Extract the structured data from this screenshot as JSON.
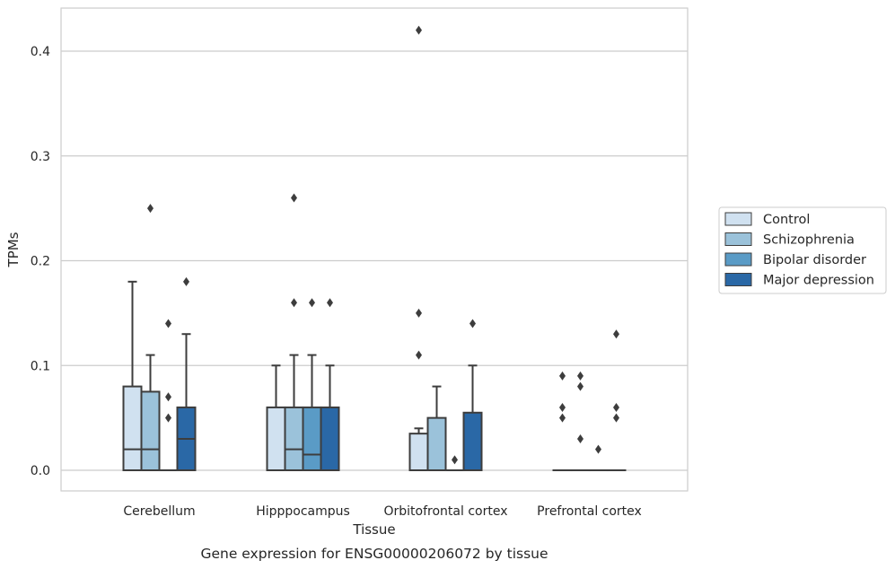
{
  "chart_data": {
    "type": "box",
    "xlabel": "Tissue",
    "ylabel": "TPMs",
    "caption": "Gene expression for ENSG00000206072 by tissue",
    "ylim": [
      -0.02,
      0.44
    ],
    "yticks": [
      "0.0",
      "0.1",
      "0.2",
      "0.3",
      "0.4"
    ],
    "ytick_values": [
      0.0,
      0.1,
      0.2,
      0.3,
      0.4
    ],
    "grid": "horizontal",
    "legend_placement": "right",
    "categories": [
      "Cerebellum",
      "Hipppocampus",
      "Orbitofrontal cortex",
      "Prefrontal cortex"
    ],
    "series": [
      {
        "name": "Control",
        "color": "#d0e1f0",
        "boxes": [
          {
            "q1": 0.0,
            "median": 0.02,
            "q3": 0.08,
            "whisker_low": 0.0,
            "whisker_high": 0.18,
            "outliers": []
          },
          {
            "q1": 0.0,
            "median": 0.0,
            "q3": 0.06,
            "whisker_low": 0.0,
            "whisker_high": 0.1,
            "outliers": []
          },
          {
            "q1": 0.0,
            "median": 0.0,
            "q3": 0.035,
            "whisker_low": 0.0,
            "whisker_high": 0.04,
            "outliers": [
              0.11,
              0.15,
              0.42
            ]
          },
          {
            "q1": 0.0,
            "median": 0.0,
            "q3": 0.0,
            "whisker_low": 0.0,
            "whisker_high": 0.0,
            "outliers": [
              0.05,
              0.06,
              0.09
            ]
          }
        ]
      },
      {
        "name": "Schizophrenia",
        "color": "#9bc2da",
        "boxes": [
          {
            "q1": 0.0,
            "median": 0.02,
            "q3": 0.075,
            "whisker_low": 0.0,
            "whisker_high": 0.11,
            "outliers": [
              0.25
            ]
          },
          {
            "q1": 0.0,
            "median": 0.02,
            "q3": 0.06,
            "whisker_low": 0.0,
            "whisker_high": 0.11,
            "outliers": [
              0.16,
              0.26
            ]
          },
          {
            "q1": 0.0,
            "median": 0.0,
            "q3": 0.05,
            "whisker_low": 0.0,
            "whisker_high": 0.08,
            "outliers": []
          },
          {
            "q1": 0.0,
            "median": 0.0,
            "q3": 0.0,
            "whisker_low": 0.0,
            "whisker_high": 0.0,
            "outliers": [
              0.03,
              0.08,
              0.09
            ]
          }
        ]
      },
      {
        "name": "Bipolar disorder",
        "color": "#5a9bc6",
        "boxes": [
          {
            "q1": 0.0,
            "median": 0.0,
            "q3": 0.0,
            "whisker_low": 0.0,
            "whisker_high": 0.0,
            "outliers": [
              0.05,
              0.07,
              0.14
            ]
          },
          {
            "q1": 0.0,
            "median": 0.015,
            "q3": 0.06,
            "whisker_low": 0.0,
            "whisker_high": 0.11,
            "outliers": [
              0.16
            ]
          },
          {
            "q1": 0.0,
            "median": 0.0,
            "q3": 0.0,
            "whisker_low": 0.0,
            "whisker_high": 0.0,
            "outliers": [
              0.01
            ]
          },
          {
            "q1": 0.0,
            "median": 0.0,
            "q3": 0.0,
            "whisker_low": 0.0,
            "whisker_high": 0.0,
            "outliers": [
              0.02
            ]
          }
        ]
      },
      {
        "name": "Major depression",
        "color": "#2a68a6",
        "boxes": [
          {
            "q1": 0.0,
            "median": 0.03,
            "q3": 0.06,
            "whisker_low": 0.0,
            "whisker_high": 0.13,
            "outliers": [
              0.18
            ]
          },
          {
            "q1": 0.0,
            "median": 0.0,
            "q3": 0.06,
            "whisker_low": 0.0,
            "whisker_high": 0.1,
            "outliers": [
              0.16
            ]
          },
          {
            "q1": 0.0,
            "median": 0.0,
            "q3": 0.055,
            "whisker_low": 0.0,
            "whisker_high": 0.1,
            "outliers": [
              0.14
            ]
          },
          {
            "q1": 0.0,
            "median": 0.0,
            "q3": 0.0,
            "whisker_low": 0.0,
            "whisker_high": 0.0,
            "outliers": [
              0.05,
              0.06,
              0.13
            ]
          }
        ]
      }
    ]
  }
}
